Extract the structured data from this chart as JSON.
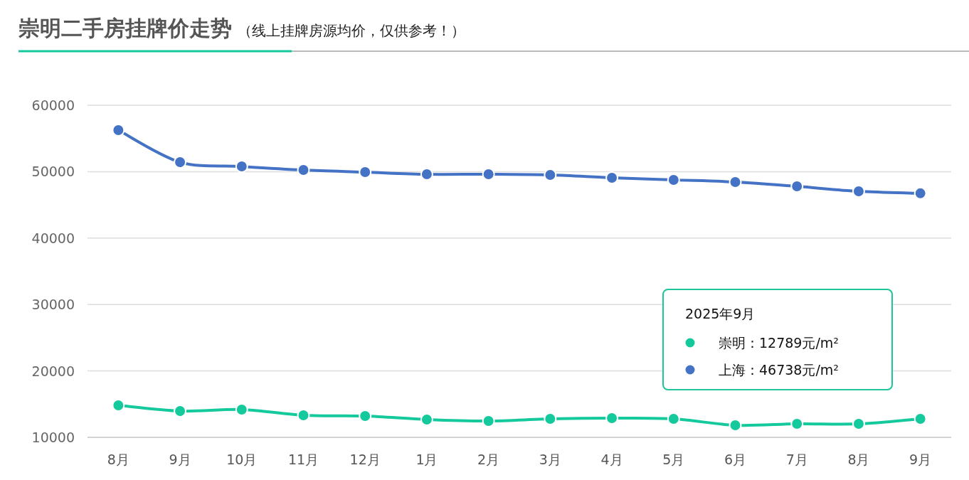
{
  "chart_data": {
    "type": "line",
    "title": "崇明二手房挂牌价走势",
    "subtitle": "（线上挂牌房源均价，仅供参考！）",
    "categories": [
      "8月",
      "9月",
      "10月",
      "11月",
      "12月",
      "1月",
      "2月",
      "3月",
      "4月",
      "5月",
      "6月",
      "7月",
      "8月",
      "9月"
    ],
    "series": [
      {
        "name": "崇明：12789元/m²",
        "color": "#14c99b",
        "values": [
          14820,
          13960,
          14180,
          13320,
          13210,
          12680,
          12460,
          12780,
          12890,
          12780,
          11820,
          12030,
          12030,
          12789
        ]
      },
      {
        "name": "上海：46738元/m²",
        "color": "#4472c4",
        "values": [
          56250,
          51430,
          50790,
          50250,
          49930,
          49610,
          49610,
          49500,
          49080,
          48760,
          48440,
          47790,
          47040,
          46738
        ]
      }
    ],
    "ylim": [
      10000,
      60000
    ],
    "yticks": [
      10000,
      20000,
      30000,
      40000,
      50000,
      60000
    ],
    "grid": "y",
    "legend": "bottom right",
    "legend_title": "2025年9月",
    "marker": "circle",
    "line_style": "solid"
  }
}
